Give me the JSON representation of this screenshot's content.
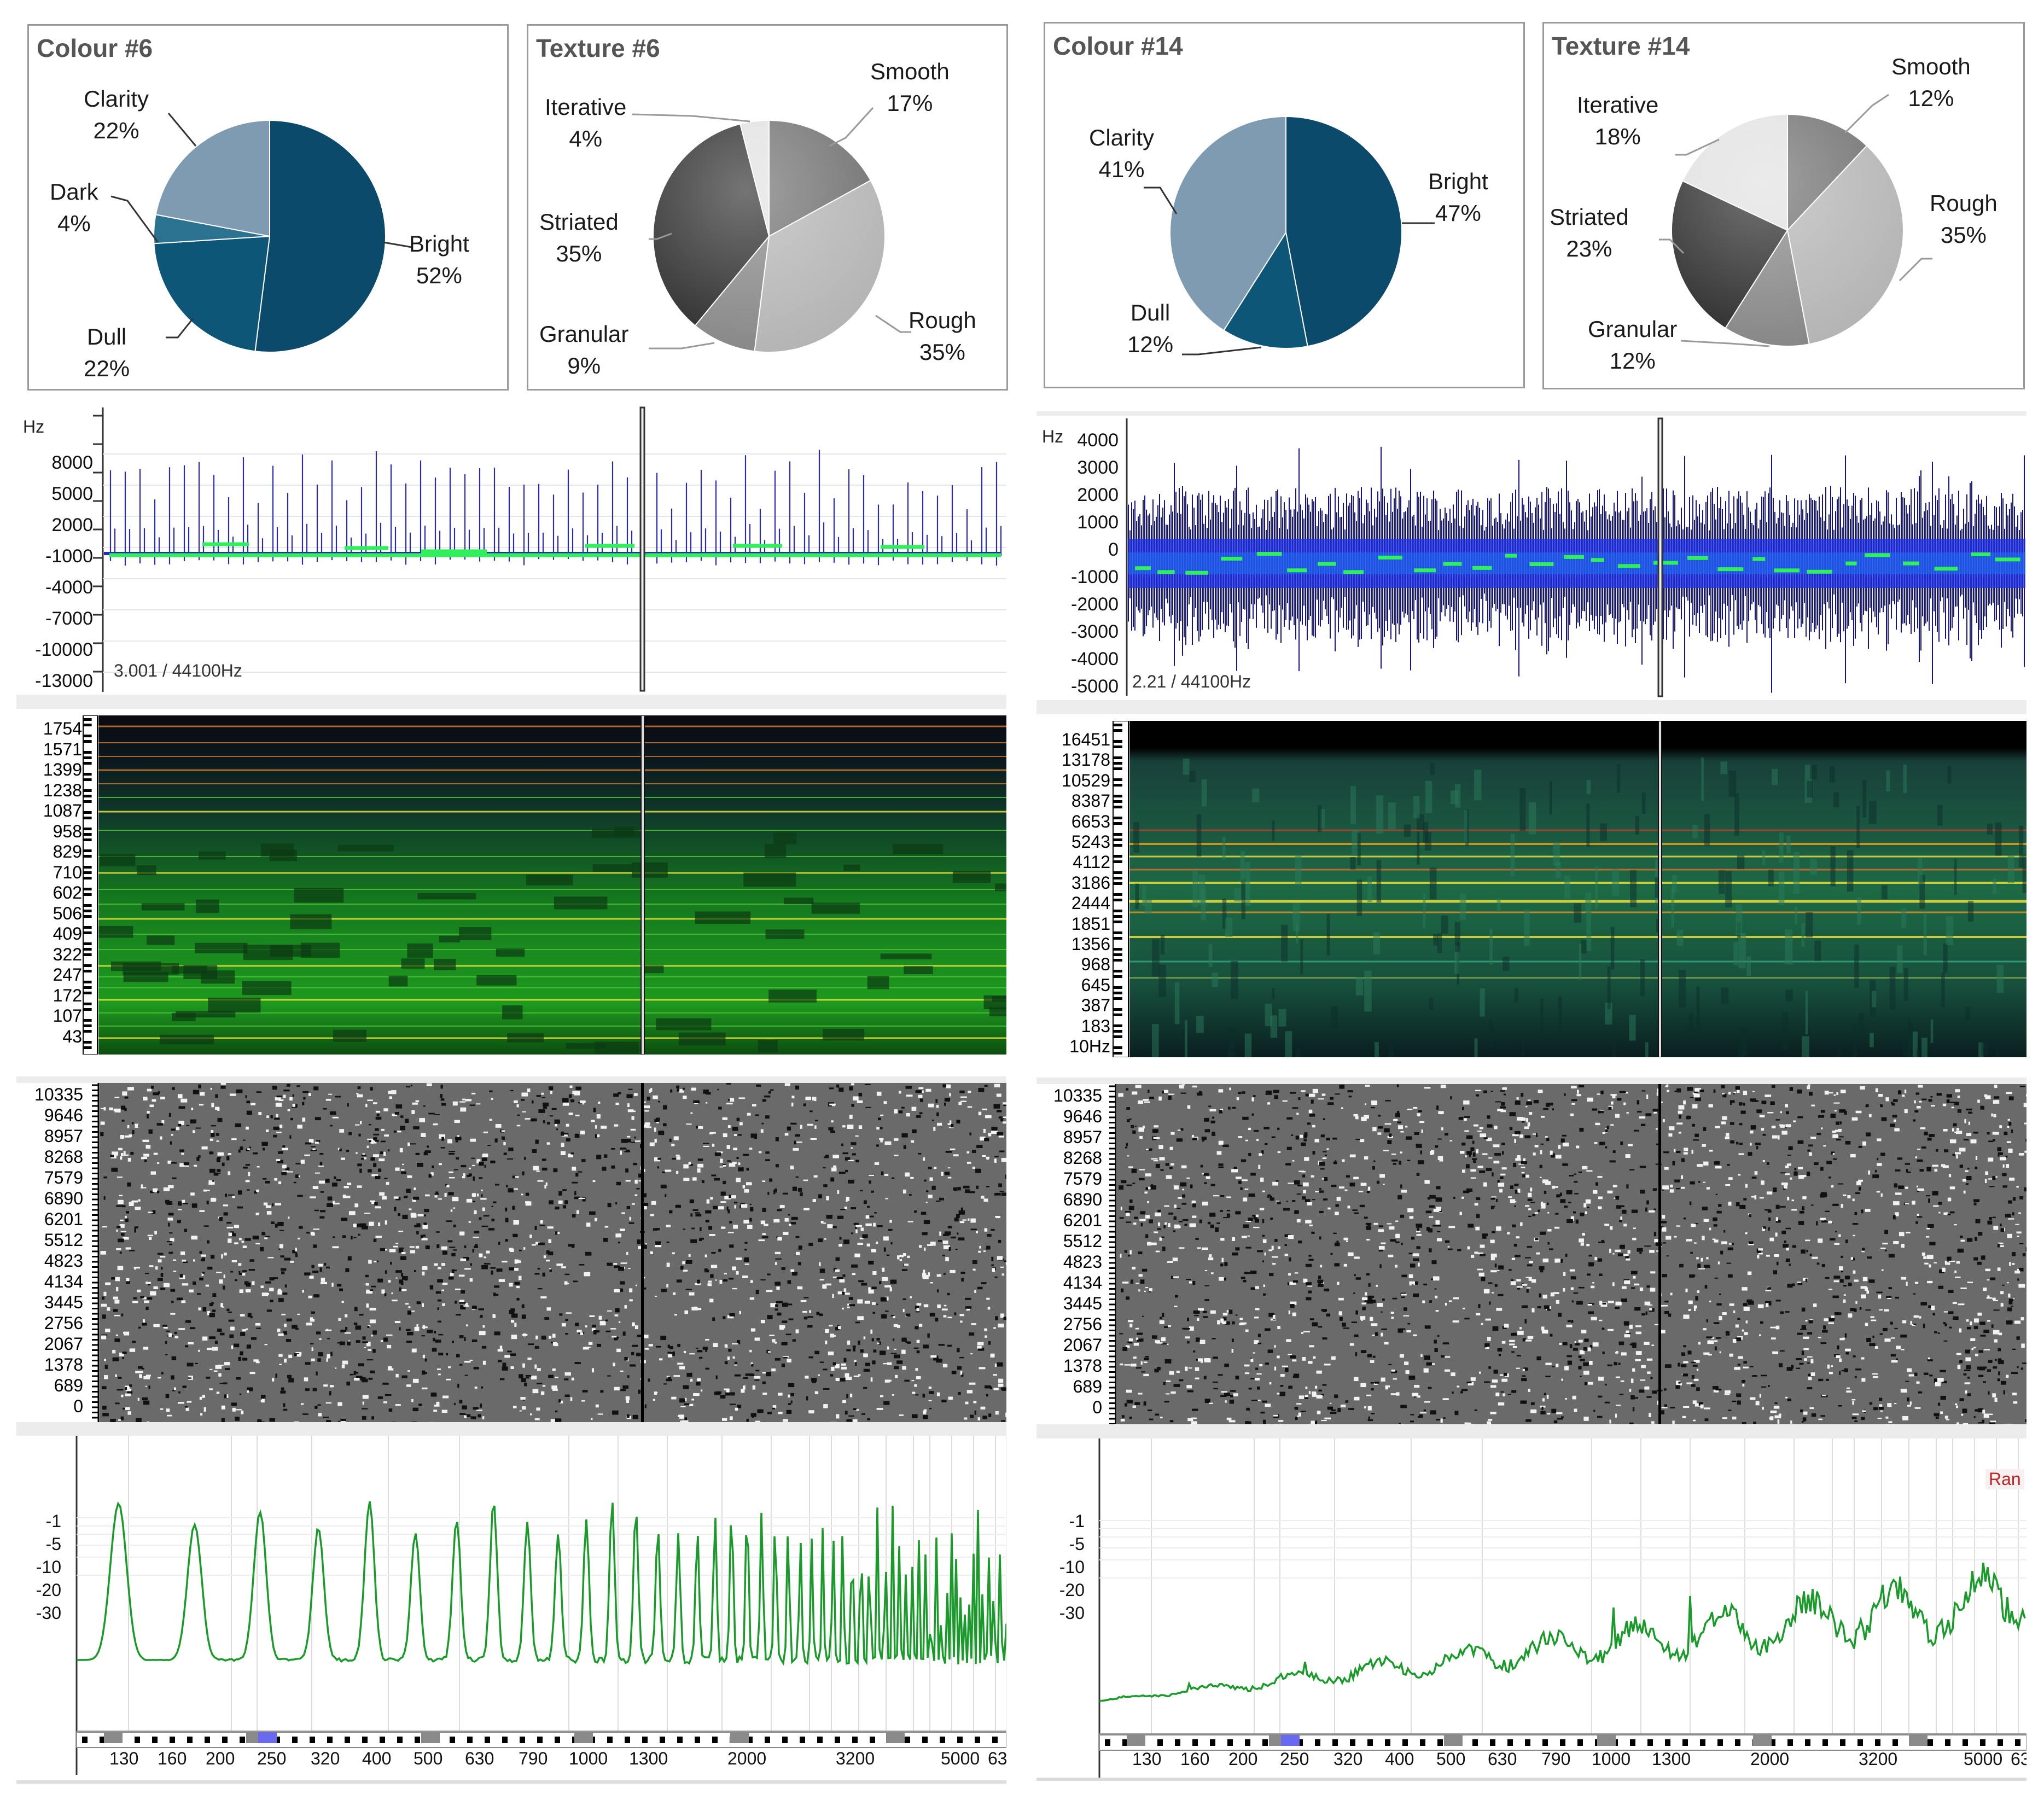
{
  "left": {
    "colour": {
      "title": "Colour #6",
      "labels": [
        {
          "name": "Bright",
          "pct": "52%"
        },
        {
          "name": "Dull",
          "pct": "22%"
        },
        {
          "name": "Dark",
          "pct": "4%"
        },
        {
          "name": "Clarity",
          "pct": "22%"
        }
      ]
    },
    "texture": {
      "title": "Texture #6",
      "labels": [
        {
          "name": "Smooth",
          "pct": "17%"
        },
        {
          "name": "Rough",
          "pct": "35%"
        },
        {
          "name": "Granular",
          "pct": "9%"
        },
        {
          "name": "Striated",
          "pct": "35%"
        },
        {
          "name": "Iterative",
          "pct": "4%"
        }
      ]
    },
    "wave": {
      "hz_label": "Hz",
      "ticks": [
        "8000",
        "5000",
        "2000",
        "-1000",
        "-4000",
        "-7000",
        "-10000",
        "-13000"
      ],
      "info": "3.001 / 44100Hz"
    },
    "spec": {
      "ticks": [
        "1754",
        "1571",
        "1399",
        "1238",
        "1087",
        "958",
        "829",
        "710",
        "602",
        "506",
        "409",
        "322",
        "247",
        "172",
        "107",
        "43"
      ]
    },
    "phase": {
      "ticks": [
        "10335",
        "9646",
        "8957",
        "8268",
        "7579",
        "6890",
        "6201",
        "5512",
        "4823",
        "4134",
        "3445",
        "2756",
        "2067",
        "1378",
        "689",
        "0"
      ]
    },
    "fft": {
      "yticks": [
        "-1",
        "-5",
        "-10",
        "-20",
        "-30"
      ],
      "xticks": [
        "130",
        "160",
        "200",
        "250",
        "320",
        "400",
        "500",
        "630",
        "790",
        "1000",
        "1300",
        "2000",
        "3200",
        "5000",
        "63"
      ]
    }
  },
  "right": {
    "colour": {
      "title": "Colour #14",
      "labels": [
        {
          "name": "Bright",
          "pct": "47%"
        },
        {
          "name": "Dull",
          "pct": "12%"
        },
        {
          "name": "Clarity",
          "pct": "41%"
        }
      ]
    },
    "texture": {
      "title": "Texture #14",
      "labels": [
        {
          "name": "Smooth",
          "pct": "12%"
        },
        {
          "name": "Rough",
          "pct": "35%"
        },
        {
          "name": "Granular",
          "pct": "12%"
        },
        {
          "name": "Striated",
          "pct": "23%"
        },
        {
          "name": "Iterative",
          "pct": "18%"
        }
      ]
    },
    "wave": {
      "hz_label": "Hz",
      "ticks": [
        "4000",
        "3000",
        "2000",
        "1000",
        "0",
        "-1000",
        "-2000",
        "-3000",
        "-4000",
        "-5000"
      ],
      "info": "2.21 / 44100Hz"
    },
    "spec": {
      "ticks": [
        "16451",
        "13178",
        "10529",
        "8387",
        "6653",
        "5243",
        "4112",
        "3186",
        "2444",
        "1851",
        "1356",
        "968",
        "645",
        "387",
        "183",
        "10Hz"
      ]
    },
    "phase": {
      "ticks": [
        "10335",
        "9646",
        "8957",
        "8268",
        "7579",
        "6890",
        "6201",
        "5512",
        "4823",
        "4134",
        "3445",
        "2756",
        "2067",
        "1378",
        "689",
        "0"
      ]
    },
    "fft": {
      "yticks": [
        "-1",
        "-5",
        "-10",
        "-20",
        "-30"
      ],
      "xticks": [
        "130",
        "160",
        "200",
        "250",
        "320",
        "400",
        "500",
        "630",
        "790",
        "1000",
        "1300",
        "2000",
        "3200",
        "5000",
        "63"
      ],
      "corner": "Ran"
    }
  },
  "chart_data": [
    {
      "type": "pie",
      "title": "Colour #6",
      "categories": [
        "Bright",
        "Dull",
        "Dark",
        "Clarity"
      ],
      "values": [
        52,
        22,
        4,
        22
      ],
      "colors": [
        "#0b4a6b",
        "#0e5678",
        "#2b7290",
        "#7e9bb1"
      ]
    },
    {
      "type": "pie",
      "title": "Texture #6",
      "categories": [
        "Smooth",
        "Rough",
        "Granular",
        "Striated",
        "Iterative"
      ],
      "values": [
        17,
        35,
        9,
        35,
        4
      ],
      "colors": [
        "#6e6e6e",
        "#b3b3b3",
        "#858585",
        "#2a2a2a",
        "#e0e0e0"
      ]
    },
    {
      "type": "pie",
      "title": "Colour #14",
      "categories": [
        "Bright",
        "Dull",
        "Clarity"
      ],
      "values": [
        47,
        12,
        41
      ],
      "colors": [
        "#0b4a6b",
        "#0e5678",
        "#7e9bb1"
      ]
    },
    {
      "type": "pie",
      "title": "Texture #14",
      "categories": [
        "Smooth",
        "Rough",
        "Granular",
        "Striated",
        "Iterative"
      ],
      "values": [
        12,
        35,
        12,
        23,
        18
      ],
      "colors": [
        "#6e6e6e",
        "#b3b3b3",
        "#858585",
        "#2a2a2a",
        "#e0e0e0"
      ]
    }
  ]
}
